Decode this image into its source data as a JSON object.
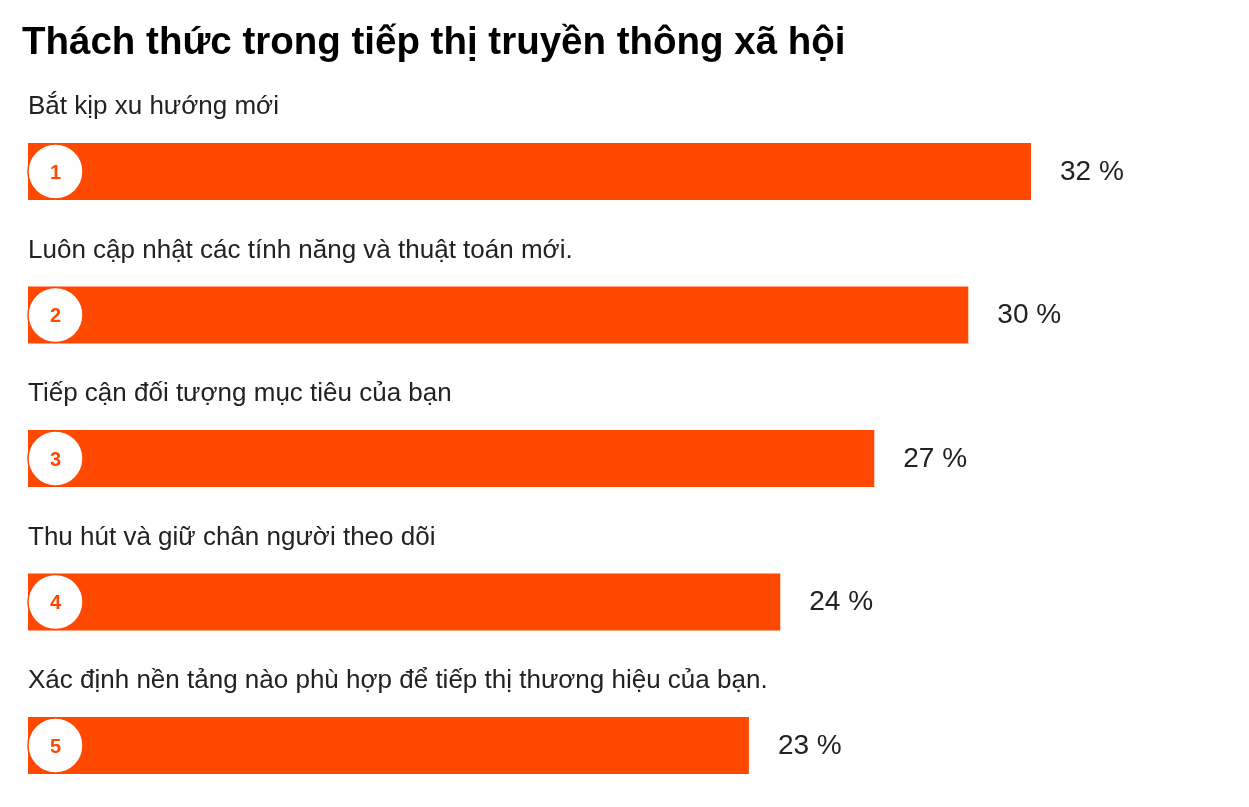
{
  "chart_data": {
    "type": "bar",
    "orientation": "horizontal",
    "title": "Thách thức trong tiếp thị truyền thông xã hội",
    "categories": [
      "Bắt kịp xu hướng mới",
      "Luôn cập nhật các tính năng và thuật toán mới.",
      "Tiếp cận đối tượng mục tiêu của bạn",
      "Thu hút và giữ chân người theo dõi",
      "Xác định nền tảng nào phù hợp để tiếp thị thương hiệu của bạn."
    ],
    "values": [
      32,
      30,
      27,
      24,
      23
    ],
    "value_labels": [
      "32 %",
      "30 %",
      "27 %",
      "24 %",
      "23 %"
    ],
    "color": "#ff4800",
    "annotations": [
      "1",
      "2",
      "3",
      "4",
      "5"
    ]
  }
}
